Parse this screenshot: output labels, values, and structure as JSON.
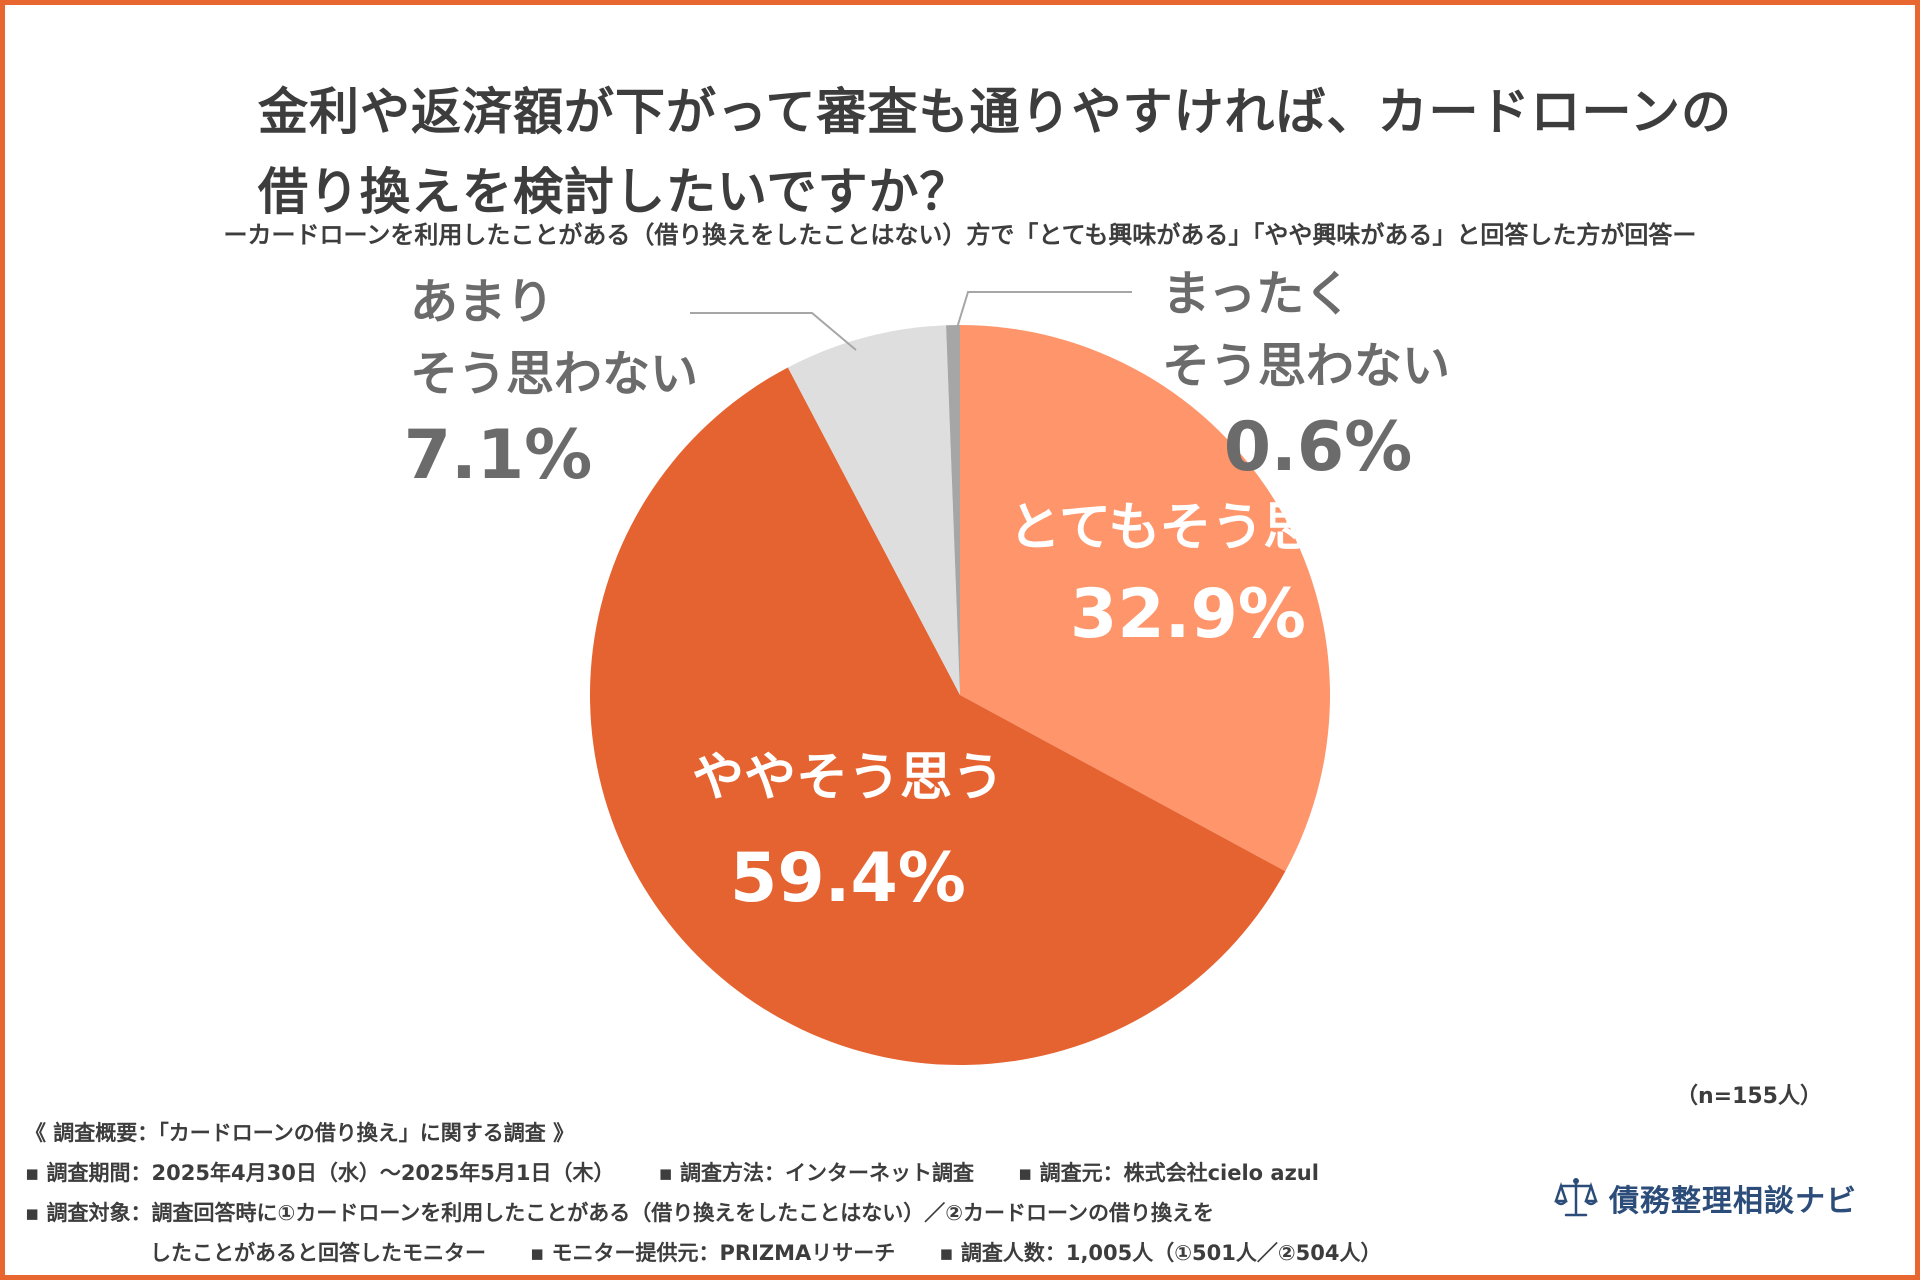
{
  "title": {
    "line1": "金利や返済額が下がって審査も通りやすければ、カードローンの",
    "line2": "借り換えを検討したいですか？"
  },
  "subtitle": "ーカードローンを利用したことがある（借り換えをしたことはない）方で「とても興味がある」「やや興味がある」と回答した方が回答ー",
  "chart_data": {
    "type": "pie",
    "title": "金利や返済額が下がって審査も通りやすければ、カードローンの借り換えを検討したいですか？",
    "slices": [
      {
        "label_lines": [
          "とてもそう思う"
        ],
        "value": 32.9,
        "display": "32.9%",
        "color": "#ff956b",
        "label_text_color": "#ffffff"
      },
      {
        "label_lines": [
          "ややそう思う"
        ],
        "value": 59.4,
        "display": "59.4%",
        "color": "#e56330",
        "label_text_color": "#ffffff"
      },
      {
        "label_lines": [
          "あまり",
          "そう思わない"
        ],
        "value": 7.1,
        "display": "7.1%",
        "color": "#dedede",
        "label_text_color": "#6b6b6b"
      },
      {
        "label_lines": [
          "まったく",
          "そう思わない"
        ],
        "value": 0.6,
        "display": "0.6%",
        "color": "#a6a6a6",
        "label_text_color": "#6b6b6b"
      }
    ],
    "start_angle_deg": 0,
    "direction": "clockwise"
  },
  "sample_size": "（n=155人）",
  "notes": {
    "heading": "《 調査概要：「カードローンの借り換え」に関する調査 》",
    "period": "▪ 調査期間：2025年4月30日（水）～2025年5月1日（木）",
    "method": "▪ 調査方法：インターネット調査",
    "source": "▪ 調査元：株式会社cielo azul",
    "target_line1": "▪ 調査対象：調査回答時に①カードローンを利用したことがある（借り換えをしたことはない）／②カードローンの借り換えを",
    "target_line2": "したことがあると回答したモニター",
    "provider": "▪ モニター提供元：PRIZMAリサーチ",
    "respondents": "▪ 調査人数：1,005人（①501人／②504人）"
  },
  "logo": {
    "text": "債務整理相談ナビ",
    "icon": "scales-icon",
    "color": "#2c4d7a"
  }
}
